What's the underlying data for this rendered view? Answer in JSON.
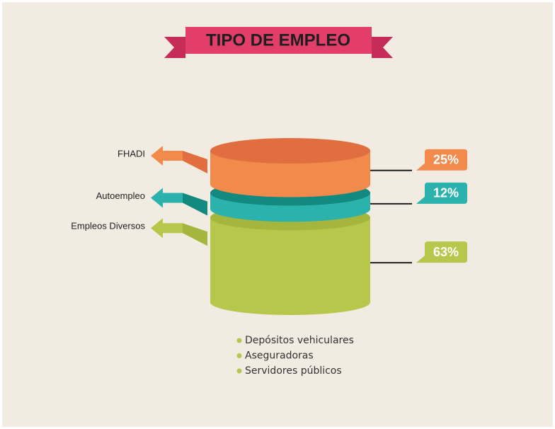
{
  "chart_data": {
    "type": "cylinder",
    "title": "TIPO DE EMPLEO",
    "categories": [
      "FHADI",
      "Autoempleo",
      "Empleos Diversos"
    ],
    "values": [
      25,
      12,
      63
    ],
    "value_labels": [
      "25%",
      "12%",
      "63%"
    ],
    "colors": [
      "#f28a4b",
      "#2bb2ac",
      "#b6c74b"
    ],
    "top_colors": [
      "#e06e3f",
      "#128a80",
      "#a5b63f"
    ],
    "items": [
      "Depósitos vehiculares",
      "Aseguradoras",
      "Servidores públicos"
    ]
  }
}
